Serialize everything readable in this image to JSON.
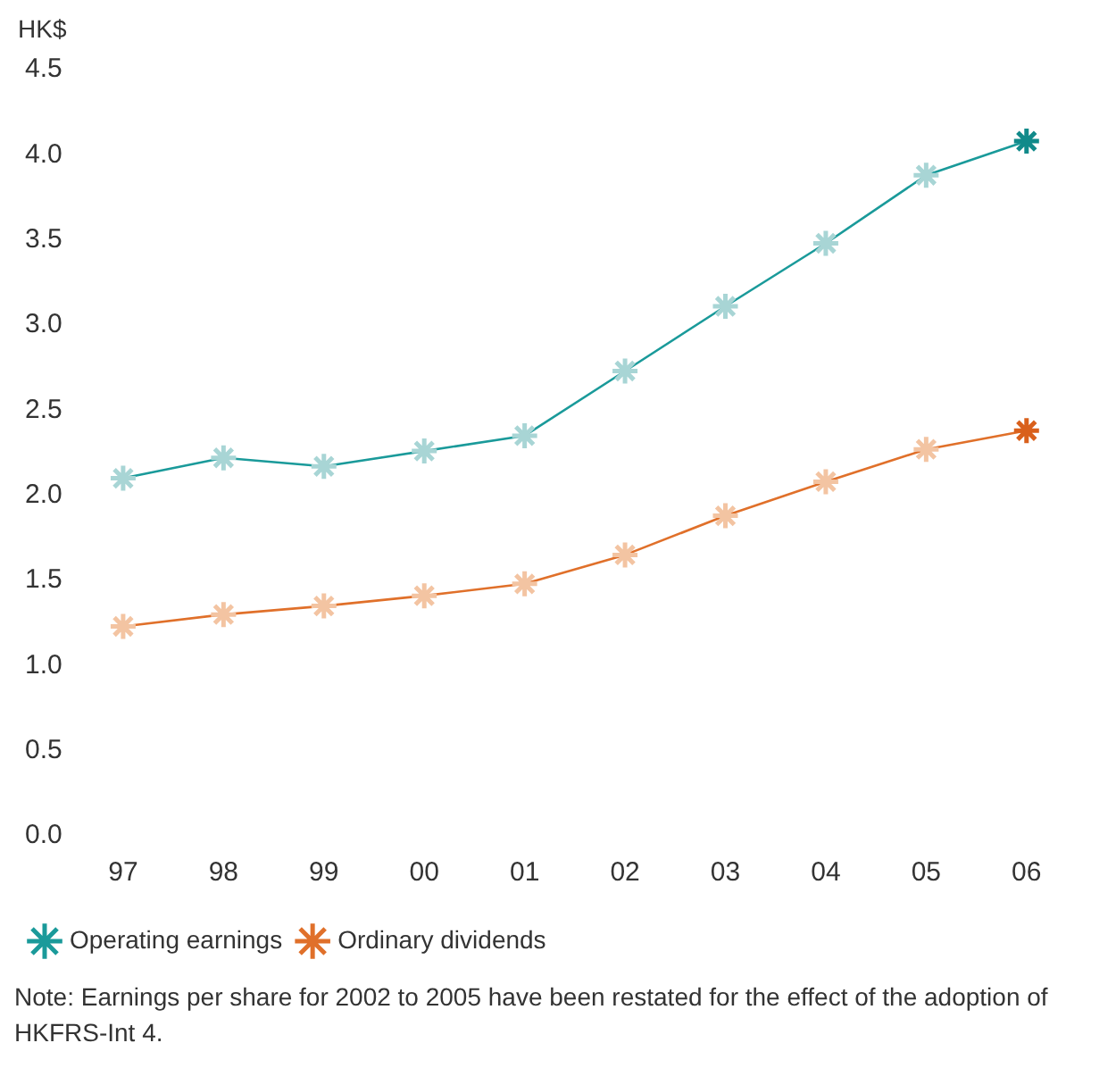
{
  "chart_data": {
    "type": "line",
    "ylabel": "HK$",
    "categories": [
      "97",
      "98",
      "99",
      "00",
      "01",
      "02",
      "03",
      "04",
      "05",
      "06"
    ],
    "series": [
      {
        "name": "Operating earnings",
        "color": "#1a9a9a",
        "colors": [
          "#a8d5d5",
          "#a8d5d5",
          "#a8d5d5",
          "#a8d5d5",
          "#a8d5d5",
          "#a8d5d5",
          "#a8d5d5",
          "#a8d5d5",
          "#a8d5d5",
          "#118a8a"
        ],
        "values": [
          2.1,
          2.22,
          2.17,
          2.26,
          2.35,
          2.73,
          3.11,
          3.48,
          3.88,
          4.08
        ]
      },
      {
        "name": "Ordinary dividends",
        "color": "#e0702a",
        "colors": [
          "#f3c4a2",
          "#f3c4a2",
          "#f3c4a2",
          "#f3c4a2",
          "#f3c4a2",
          "#f3c4a2",
          "#f3c4a2",
          "#f3c4a2",
          "#f3c4a2",
          "#d9601c"
        ],
        "values": [
          1.23,
          1.3,
          1.35,
          1.41,
          1.48,
          1.65,
          1.88,
          2.08,
          2.27,
          2.38
        ]
      }
    ],
    "ylim": [
      0,
      4.5
    ],
    "yticks": [
      {
        "value": 0,
        "label": "0.0"
      },
      {
        "value": 0.5,
        "label": "0.5"
      },
      {
        "value": 1,
        "label": "1.0"
      },
      {
        "value": 1.5,
        "label": "1.5"
      },
      {
        "value": 2,
        "label": "2.0"
      },
      {
        "value": 2.5,
        "label": "2.5"
      },
      {
        "value": 3,
        "label": "3.0"
      },
      {
        "value": 3.5,
        "label": "3.5"
      },
      {
        "value": 4,
        "label": "4.0"
      },
      {
        "value": 4.5,
        "label": "4.5"
      }
    ],
    "grid": false,
    "legend": "bottom",
    "marker": "cross",
    "line_style": "solid",
    "annotations": [
      "Note: Earnings per share for 2002 to 2005 have been restated for the effect of the adoption of HKFRS-Int 4."
    ]
  }
}
